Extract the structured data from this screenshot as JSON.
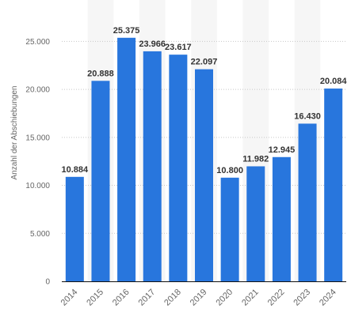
{
  "chart_data": {
    "type": "bar",
    "categories": [
      "2014",
      "2015",
      "2016",
      "2017",
      "2018",
      "2019",
      "2020",
      "2021",
      "2022",
      "2023",
      "2024"
    ],
    "values": [
      10884,
      20888,
      25375,
      23966,
      23617,
      22097,
      10800,
      11982,
      12945,
      16430,
      20084
    ],
    "value_labels": [
      "10.884",
      "20.888",
      "25.375",
      "23.966",
      "23.617",
      "22.097",
      "10.800",
      "11.982",
      "12.945",
      "16.430",
      "20.084"
    ],
    "title": "",
    "xlabel": "",
    "ylabel": "Anzahl der Abschiebungen",
    "ylim": [
      0,
      27500
    ],
    "yticks": [
      0,
      5000,
      10000,
      15000,
      20000,
      25000
    ],
    "ytick_labels": [
      "0",
      "5.000",
      "10.000",
      "15.000",
      "20.000",
      "25.000"
    ],
    "grid": true,
    "legend": "none",
    "bar_color": "#2876dd",
    "band_color": "#f6f6f6",
    "grid_color": "#c8c8c8",
    "axis_color": "#111111"
  }
}
